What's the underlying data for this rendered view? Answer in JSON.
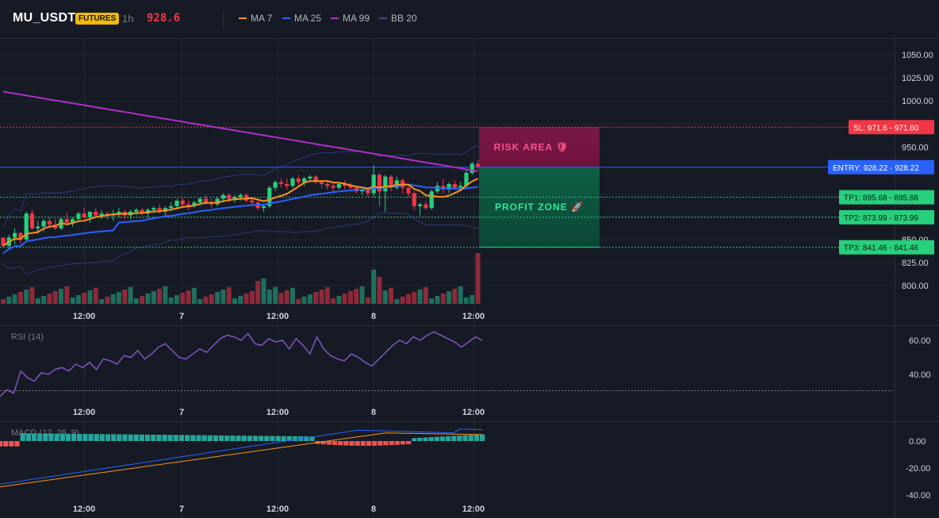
{
  "header": {
    "symbol": "MU_USDT",
    "badge": "FUTURES",
    "timeframe": "1h",
    "last_price": "928.6"
  },
  "legend": [
    {
      "label": "MA 7",
      "color": "#f7931a"
    },
    {
      "label": "MA 25",
      "color": "#2962ff"
    },
    {
      "label": "MA 99",
      "color": "#b030c8"
    },
    {
      "label": "BB 20",
      "color": "#3a4a9a"
    }
  ],
  "colors": {
    "up": "#26d07c",
    "down": "#f23645",
    "vol_up": "#1f6f5c",
    "vol_down": "#8e2a3a",
    "grid": "#222631",
    "axis_text": "#d1d4dc",
    "rsi": "#7e57c2",
    "macd": "#2962ff",
    "signal": "#f7931a"
  },
  "time_labels": [
    "12:00",
    "7",
    "12:00",
    "8",
    "12:00"
  ],
  "price_axis": {
    "ticks": [
      "1050.00",
      "1025.00",
      "1000.00",
      "950.00",
      "850.00",
      "825.00",
      "800.00"
    ]
  },
  "rsi_panel": {
    "title": "RSI (14)",
    "ticks": [
      "60.00",
      "40.00"
    ]
  },
  "macd_panel": {
    "title": "MACD (12, 26, 9)",
    "ticks": [
      "0.00",
      "-20.00",
      "-40.00"
    ]
  },
  "trade": {
    "sl_label": "SL: 971.6",
    "sl_value": "971.60",
    "entry_label": "ENTRY: 928.22",
    "entry_value": "928.22",
    "tp1_label": "TP1: 895.68",
    "tp1_value": "895.68",
    "tp2_label": "TP2: 873.99",
    "tp2_value": "873.99",
    "tp3_label": "TP3: 841.46",
    "tp3_value": "841.46",
    "risk_label": "RISK AREA 🛡",
    "profit_label": "PROFIT ZONE 🚀"
  },
  "chart_data": {
    "type": "candlestick",
    "candles": [
      [
        852,
        851,
        841,
        843
      ],
      [
        843,
        855,
        840,
        852
      ],
      [
        852,
        862,
        845,
        857
      ],
      [
        857,
        858,
        845,
        850
      ],
      [
        850,
        880,
        848,
        878
      ],
      [
        878,
        882,
        860,
        862
      ],
      [
        862,
        870,
        856,
        864
      ],
      [
        864,
        872,
        858,
        870
      ],
      [
        870,
        874,
        862,
        866
      ],
      [
        866,
        872,
        860,
        862
      ],
      [
        862,
        874,
        860,
        872
      ],
      [
        872,
        878,
        866,
        868
      ],
      [
        868,
        874,
        864,
        872
      ],
      [
        872,
        880,
        870,
        878
      ],
      [
        878,
        884,
        872,
        874
      ],
      [
        874,
        880,
        868,
        880
      ],
      [
        880,
        884,
        874,
        876
      ],
      [
        876,
        882,
        872,
        878
      ],
      [
        878,
        880,
        872,
        876
      ],
      [
        876,
        882,
        870,
        878
      ],
      [
        878,
        884,
        874,
        880
      ],
      [
        880,
        882,
        872,
        876
      ],
      [
        876,
        882,
        872,
        880
      ],
      [
        880,
        884,
        876,
        882
      ],
      [
        882,
        884,
        876,
        878
      ],
      [
        878,
        884,
        874,
        882
      ],
      [
        882,
        886,
        878,
        884
      ],
      [
        884,
        888,
        878,
        880
      ],
      [
        880,
        886,
        876,
        884
      ],
      [
        884,
        890,
        880,
        886
      ],
      [
        886,
        894,
        884,
        892
      ],
      [
        892,
        895,
        886,
        888
      ],
      [
        888,
        892,
        882,
        886
      ],
      [
        886,
        892,
        884,
        890
      ],
      [
        890,
        896,
        886,
        894
      ],
      [
        894,
        898,
        888,
        890
      ],
      [
        890,
        894,
        884,
        888
      ],
      [
        888,
        896,
        886,
        894
      ],
      [
        894,
        900,
        892,
        898
      ],
      [
        898,
        900,
        890,
        894
      ],
      [
        894,
        898,
        890,
        896
      ],
      [
        896,
        900,
        892,
        898
      ],
      [
        898,
        900,
        890,
        892
      ],
      [
        892,
        896,
        886,
        890
      ],
      [
        890,
        894,
        882,
        884
      ],
      [
        884,
        888,
        880,
        886
      ],
      [
        886,
        908,
        884,
        906
      ],
      [
        906,
        914,
        902,
        912
      ],
      [
        912,
        916,
        906,
        910
      ],
      [
        910,
        916,
        904,
        908
      ],
      [
        908,
        918,
        906,
        916
      ],
      [
        916,
        920,
        908,
        912
      ],
      [
        912,
        918,
        908,
        916
      ],
      [
        916,
        920,
        912,
        918
      ],
      [
        918,
        920,
        910,
        912
      ],
      [
        912,
        914,
        906,
        910
      ],
      [
        910,
        914,
        904,
        908
      ],
      [
        908,
        912,
        902,
        906
      ],
      [
        906,
        912,
        904,
        910
      ],
      [
        910,
        914,
        904,
        908
      ],
      [
        908,
        912,
        902,
        906
      ],
      [
        906,
        908,
        900,
        902
      ],
      [
        902,
        906,
        898,
        904
      ],
      [
        904,
        906,
        896,
        900
      ],
      [
        900,
        930,
        896,
        920
      ],
      [
        920,
        922,
        886,
        902
      ],
      [
        902,
        920,
        880,
        918
      ],
      [
        918,
        920,
        902,
        906
      ],
      [
        906,
        918,
        904,
        914
      ],
      [
        914,
        916,
        900,
        906
      ],
      [
        906,
        908,
        896,
        900
      ],
      [
        900,
        902,
        882,
        886
      ],
      [
        886,
        890,
        876,
        888
      ],
      [
        888,
        892,
        882,
        884
      ],
      [
        884,
        904,
        882,
        902
      ],
      [
        902,
        912,
        900,
        908
      ],
      [
        908,
        916,
        900,
        904
      ],
      [
        904,
        912,
        900,
        910
      ],
      [
        910,
        914,
        904,
        906
      ],
      [
        906,
        912,
        904,
        908
      ],
      [
        908,
        926,
        906,
        922
      ],
      [
        922,
        934,
        920,
        932
      ],
      [
        932,
        936,
        926,
        929
      ]
    ],
    "volume_note": "volume bars shown below candles",
    "levels": {
      "sl": 971.6,
      "entry": 928.22,
      "tp1": 895.68,
      "tp2": 873.99,
      "tp3": 841.46
    },
    "ylim": [
      775,
      1065
    ]
  }
}
